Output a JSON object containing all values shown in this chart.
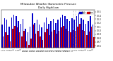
{
  "title": "Milwaukee Weather Barometric Pressure",
  "subtitle": "Daily High/Low",
  "high_color": "#0000cc",
  "low_color": "#cc0000",
  "background_color": "#ffffff",
  "legend_high_label": "High",
  "legend_low_label": "Low",
  "high_values": [
    30.15,
    30.32,
    30.28,
    30.1,
    30.35,
    30.42,
    30.38,
    30.25,
    30.18,
    30.3,
    30.05,
    29.95,
    30.1,
    30.45,
    30.2,
    30.28,
    30.15,
    30.08,
    30.22,
    30.35,
    30.18,
    30.25,
    30.3,
    30.2,
    30.28,
    30.35,
    30.42,
    30.38,
    30.3,
    30.25,
    30.32,
    30.28,
    30.38,
    30.45,
    30.32,
    30.28,
    30.18,
    30.25,
    30.38,
    30.15
  ],
  "low_values": [
    29.85,
    29.95,
    29.88,
    29.72,
    30.05,
    30.12,
    30.08,
    29.95,
    29.85,
    30.0,
    29.72,
    29.62,
    29.78,
    30.15,
    29.92,
    30.0,
    29.85,
    29.75,
    29.95,
    30.05,
    29.88,
    29.98,
    30.02,
    29.92,
    30.0,
    30.08,
    30.12,
    30.05,
    30.0,
    29.95,
    30.02,
    30.0,
    30.1,
    30.18,
    30.02,
    30.0,
    29.88,
    29.98,
    30.1,
    29.82
  ],
  "x_labels": [
    "1",
    "2",
    "3",
    "4",
    "5",
    "6",
    "7",
    "8",
    "9",
    "10",
    "11",
    "12",
    "13",
    "14",
    "15",
    "16",
    "17",
    "18",
    "19",
    "20",
    "21",
    "22",
    "23",
    "24",
    "25",
    "26",
    "27",
    "28",
    "29",
    "30",
    "31",
    "1",
    "2",
    "3",
    "4",
    "5",
    "6",
    "7",
    "8",
    "9"
  ],
  "ymin": 29.55,
  "ymax": 30.55,
  "yticks": [
    29.6,
    29.7,
    29.8,
    29.9,
    30.0,
    30.1,
    30.2,
    30.3,
    30.4,
    30.5
  ],
  "ytick_labels": [
    "29.6",
    "29.7",
    "29.8",
    "29.9",
    "30.0",
    "30.1",
    "30.2",
    "30.3",
    "30.4",
    "30.5"
  ],
  "dotted_lines_before": [
    31,
    32
  ],
  "bar_width": 0.45
}
